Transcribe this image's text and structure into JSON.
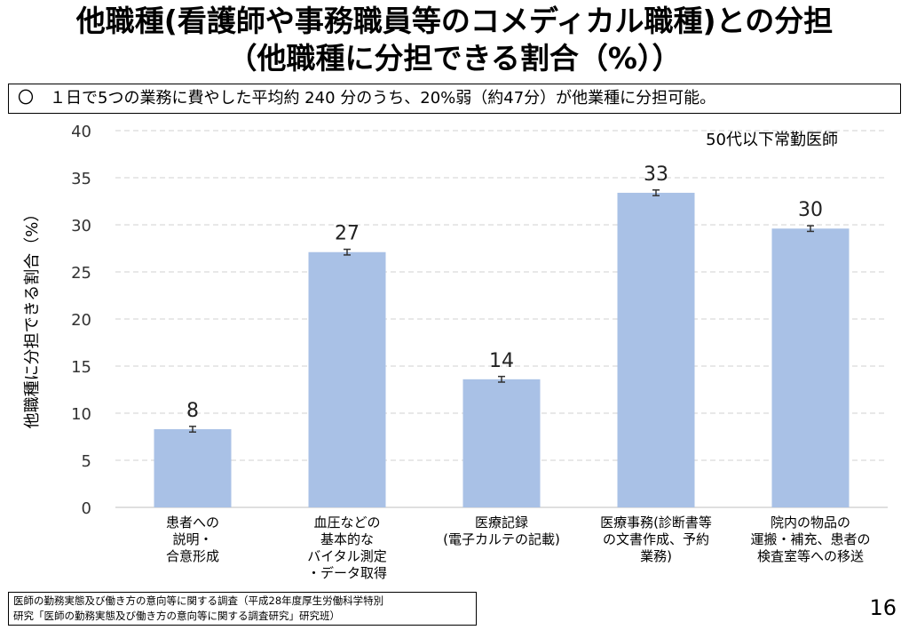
{
  "title": {
    "line1": "他職種(看護師や事務職員等のコメディカル職種)との分担",
    "line2": "（他職種に分担できる割合（%））"
  },
  "summary": "〇　１日で5つの業務に費やした平均約 240 分のうち、20%弱（約47分）が他業種に分担可能。",
  "chart_data": {
    "type": "bar",
    "subtitle": "50代以下常勤医師",
    "ylabel": "他職種に分担できる割合（%）",
    "xlabel": "",
    "ylim": [
      0,
      40
    ],
    "yticks": [
      "0",
      "5",
      "10",
      "15",
      "20",
      "25",
      "30",
      "35",
      "40"
    ],
    "grid": true,
    "categories": [
      [
        "患者への",
        "説明・",
        "合意形成"
      ],
      [
        "血圧などの",
        "基本的な",
        "バイタル測定",
        "・データ取得"
      ],
      [
        "医療記録",
        "(電子カルテの記載)"
      ],
      [
        "医療事務(診断書等",
        "の文書作成、予約",
        "業務)"
      ],
      [
        "院内の物品の",
        "運搬・補充、患者の",
        "検査室等への移送"
      ]
    ],
    "values": [
      8.3,
      27.1,
      13.6,
      33.4,
      29.6
    ],
    "data_labels": [
      "8",
      "27",
      "14",
      "33",
      "30"
    ],
    "error": [
      0.3,
      0.3,
      0.3,
      0.3,
      0.3
    ],
    "bar_color": "#a9c1e6",
    "error_color": "#333333"
  },
  "footnote": {
    "line1": "医師の勤務実態及び働き方の意向等に関する調査（平成28年度厚生労働科学特別",
    "line2": "研究「医師の勤務実態及び働き方の意向等に関する調査研究」研究班）"
  },
  "page_number": "16"
}
